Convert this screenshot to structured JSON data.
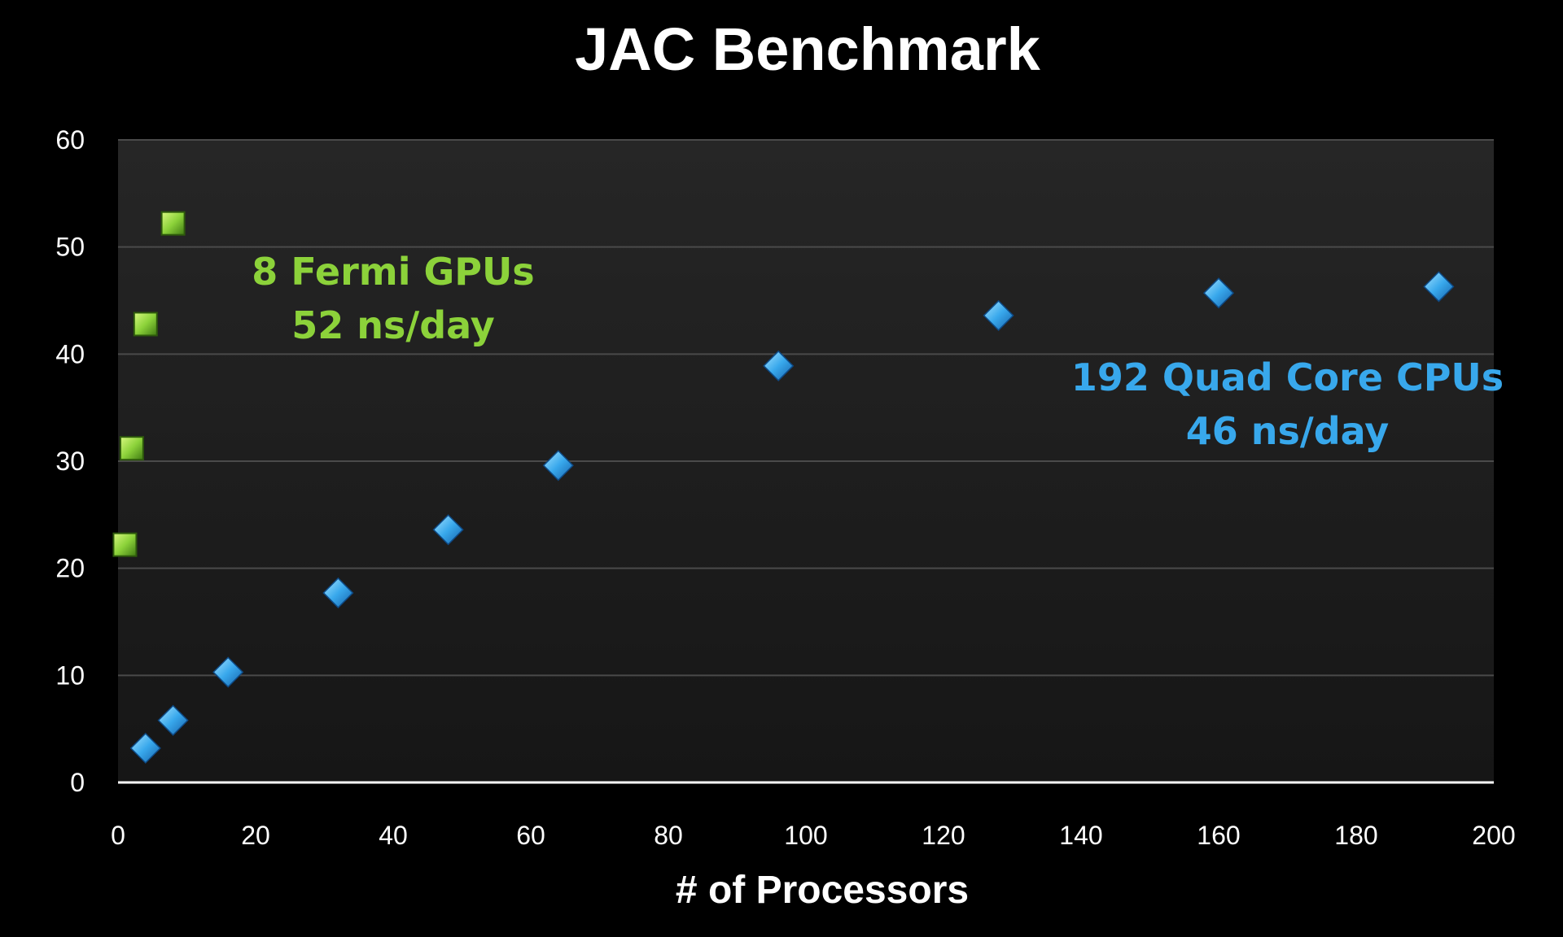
{
  "chart_data": {
    "type": "scatter",
    "title": "JAC Benchmark",
    "xlabel": "# of Processors",
    "ylabel": "",
    "xlim": [
      0,
      200
    ],
    "ylim": [
      0,
      60
    ],
    "x_ticks": [
      0,
      20,
      40,
      60,
      80,
      100,
      120,
      140,
      160,
      180,
      200
    ],
    "y_ticks": [
      0,
      10,
      20,
      30,
      40,
      50,
      60
    ],
    "grid": "horizontal",
    "legend": "none",
    "series": [
      {
        "marker": "square",
        "color": "#8cd23a",
        "points": [
          {
            "x": 1,
            "y": 22.2
          },
          {
            "x": 2,
            "y": 31.2
          },
          {
            "x": 4,
            "y": 42.8
          },
          {
            "x": 8,
            "y": 52.2
          }
        ]
      },
      {
        "marker": "diamond",
        "color": "#38a8ec",
        "points": [
          {
            "x": 4,
            "y": 3.2
          },
          {
            "x": 8,
            "y": 5.8
          },
          {
            "x": 16,
            "y": 10.3
          },
          {
            "x": 32,
            "y": 17.7
          },
          {
            "x": 48,
            "y": 23.6
          },
          {
            "x": 64,
            "y": 29.6
          },
          {
            "x": 96,
            "y": 38.9
          },
          {
            "x": 128,
            "y": 43.6
          },
          {
            "x": 160,
            "y": 45.7
          },
          {
            "x": 192,
            "y": 46.3
          }
        ]
      }
    ],
    "annotations": [
      {
        "lines": [
          "8  Fermi GPUs",
          "52 ns/day"
        ],
        "color": "#8cd23a",
        "x": 40,
        "y": 46.5
      },
      {
        "lines": [
          "192 Quad Core CPUs",
          "46 ns/day"
        ],
        "color": "#38a8ec",
        "x": 170,
        "y": 36.6
      }
    ]
  }
}
